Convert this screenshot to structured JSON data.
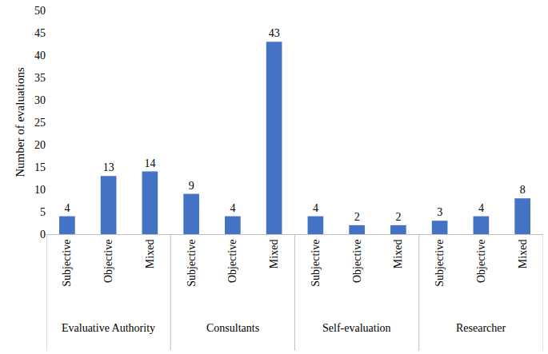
{
  "chart_data": {
    "type": "bar",
    "y_label": "Number of evaluations",
    "groups": [
      {
        "name": "Evaluative Authority",
        "categories": [
          "Subjective",
          "Objective",
          "Mixed"
        ],
        "values": [
          4,
          13,
          14
        ]
      },
      {
        "name": "Consultants",
        "categories": [
          "Subjective",
          "Objective",
          "Mixed"
        ],
        "values": [
          9,
          4,
          43
        ]
      },
      {
        "name": "Self-evaluation",
        "categories": [
          "Subjective",
          "Objective",
          "Mixed"
        ],
        "values": [
          4,
          2,
          2
        ]
      },
      {
        "name": "Researcher",
        "categories": [
          "Subjective",
          "Objective",
          "Mixed"
        ],
        "values": [
          3,
          4,
          8
        ]
      }
    ],
    "color": "#4472c4",
    "ylim": [
      0,
      50
    ],
    "yticks": [
      0,
      5,
      10,
      15,
      20,
      25,
      30,
      35,
      40,
      45,
      50
    ],
    "grid": false,
    "data_labels": true
  }
}
